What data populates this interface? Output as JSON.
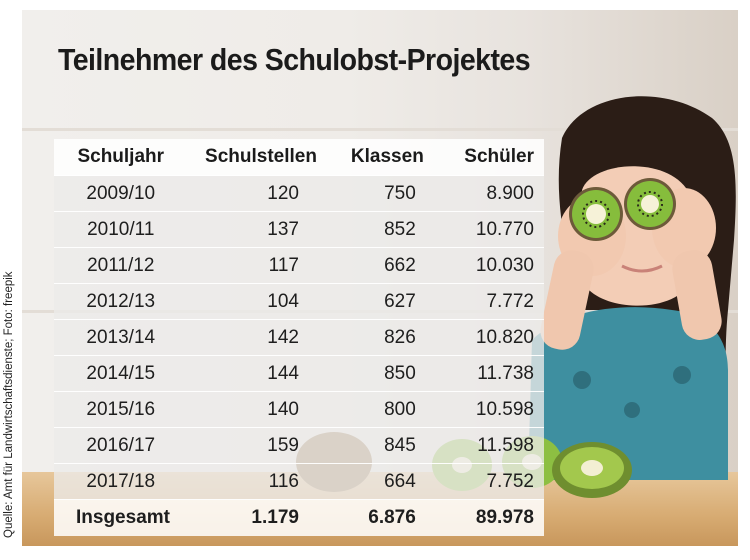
{
  "title": "Teilnehmer des Schulobst-Projektes",
  "credit": "Quelle: Amt für Landwirtschaftsdienste; Foto: freepik",
  "chart_data": {
    "type": "table",
    "columns": [
      "Schuljahr",
      "Schulstellen",
      "Klassen",
      "Schüler"
    ],
    "rows": [
      [
        "2009/10",
        "120",
        "750",
        "8.900"
      ],
      [
        "2010/11",
        "137",
        "852",
        "10.770"
      ],
      [
        "2011/12",
        "117",
        "662",
        "10.030"
      ],
      [
        "2012/13",
        "104",
        "627",
        "7.772"
      ],
      [
        "2013/14",
        "142",
        "826",
        "10.820"
      ],
      [
        "2014/15",
        "144",
        "850",
        "11.738"
      ],
      [
        "2015/16",
        "140",
        "800",
        "10.598"
      ],
      [
        "2016/17",
        "159",
        "845",
        "11.598"
      ],
      [
        "2017/18",
        "116",
        "664",
        "7.752"
      ]
    ],
    "total": [
      "Insgesamt",
      "1.179",
      "6.876",
      "89.978"
    ]
  },
  "colors": {
    "kiwi_green": "#7db33a",
    "hair": "#2a1c16",
    "shirt": "#3e8fa0",
    "table_wood": "#d7ab72"
  },
  "icons": [
    "kiwi-slice-left-eye",
    "kiwi-slice-right-eye",
    "kiwi-slices-on-table"
  ]
}
